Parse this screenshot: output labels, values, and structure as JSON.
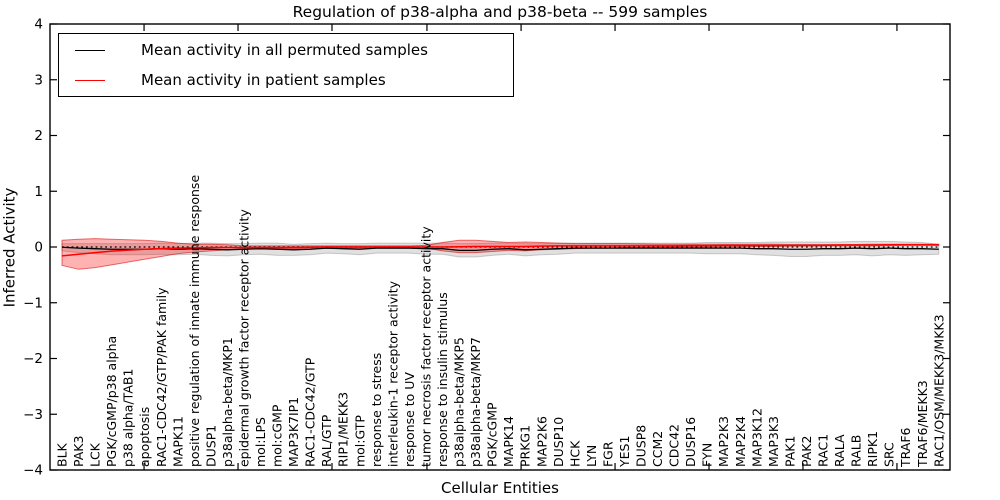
{
  "figure": {
    "title": "Regulation of p38-alpha and p38-beta -- 599 samples",
    "xlabel": "Cellular Entities",
    "ylabel": "Inferred Activity",
    "background": "#ffffff",
    "legend": {
      "position": "upper left",
      "items": [
        {
          "label": "Mean activity in all permuted samples",
          "color": "#000000"
        },
        {
          "label": "Mean activity in patient samples",
          "color": "#ff0000"
        }
      ]
    }
  },
  "chart_data": {
    "type": "line",
    "title": "Regulation of p38-alpha and p38-beta -- 599 samples",
    "xlabel": "Cellular Entities",
    "ylabel": "Inferred Activity",
    "ylim": [
      -4,
      4
    ],
    "yticks": [
      -4,
      -3,
      -2,
      -1,
      0,
      1,
      2,
      3,
      4
    ],
    "grid": false,
    "legend_position": "upper left",
    "xtick_positions_idx": [
      4.96,
      10.64,
      16.32,
      22.06,
      27.75,
      33.43,
      39.11,
      44.79,
      50.47
    ],
    "zero_line": {
      "style": "dotted",
      "color": "#000000",
      "y": 0
    },
    "categories": [
      "BLK",
      "PAK3",
      "LCK",
      "PGK/cGMP/p38 alpha",
      "p38 alpha/TAB1",
      "apoptosis",
      "RAC1-CDC42/GTP/PAK family",
      "MAPK11",
      "positive regulation of innate immune response",
      "DUSP1",
      "p38alpha-beta/MKP1",
      "epidermal growth factor receptor activity",
      "mol:LPS",
      "mol:cGMP",
      "MAP3K7IP1",
      "RAC1-CDC42/GTP",
      "RAL/GTP",
      "RIP1/MEKK3",
      "mol:GTP",
      "response to stress",
      "interleukin-1 receptor activity",
      "response to UV",
      "tumor necrosis factor receptor activity",
      "response to insulin stimulus",
      "p38alpha-beta/MKP5",
      "p38alpha-beta/MKP7",
      "PGK/cGMP",
      "MAPK14",
      "PRKG1",
      "MAP2K6",
      "DUSP10",
      "HCK",
      "LYN",
      "FGR",
      "YES1",
      "DUSP8",
      "CCM2",
      "CDC42",
      "DUSP16",
      "FYN",
      "MAP2K3",
      "MAP2K4",
      "MAP3K12",
      "MAP3K3",
      "PAK1",
      "PAK2",
      "RAC1",
      "RALA",
      "RALB",
      "RIPK1",
      "SRC",
      "TRAF6",
      "TRAF6/MEKK3",
      "RAC1/OSM/MEKK3/MKK3"
    ],
    "series": [
      {
        "name": "Mean activity in all permuted samples",
        "color": "#000000",
        "band_fill": "rgba(0,0,0,0.12)",
        "band_edge": "rgba(0,0,0,0.18)",
        "values": [
          -0.005,
          -0.02,
          -0.03,
          -0.04,
          -0.04,
          -0.04,
          -0.03,
          -0.04,
          -0.03,
          -0.04,
          -0.05,
          -0.04,
          -0.03,
          -0.04,
          -0.05,
          -0.04,
          -0.02,
          -0.03,
          -0.04,
          -0.02,
          -0.02,
          -0.02,
          -0.03,
          -0.03,
          -0.06,
          -0.06,
          -0.04,
          -0.03,
          -0.05,
          -0.04,
          -0.03,
          -0.02,
          -0.02,
          -0.02,
          -0.02,
          -0.02,
          -0.02,
          -0.02,
          -0.02,
          -0.02,
          -0.02,
          -0.02,
          -0.03,
          -0.03,
          -0.04,
          -0.04,
          -0.03,
          -0.03,
          -0.02,
          -0.03,
          -0.02,
          -0.03,
          -0.03,
          -0.04
        ],
        "band_upper": [
          0.06,
          0.06,
          0.06,
          0.06,
          0.06,
          0.06,
          0.07,
          0.06,
          0.07,
          0.07,
          0.06,
          0.06,
          0.07,
          0.07,
          0.05,
          0.06,
          0.07,
          0.06,
          0.06,
          0.07,
          0.07,
          0.07,
          0.07,
          0.07,
          0.06,
          0.06,
          0.07,
          0.07,
          0.06,
          0.06,
          0.07,
          0.07,
          0.07,
          0.07,
          0.07,
          0.07,
          0.07,
          0.07,
          0.07,
          0.08,
          0.08,
          0.08,
          0.08,
          0.09,
          0.09,
          0.09,
          0.09,
          0.09,
          0.1,
          0.1,
          0.1,
          0.09,
          0.08,
          0.05
        ],
        "band_lower": [
          -0.07,
          -0.1,
          -0.12,
          -0.14,
          -0.14,
          -0.14,
          -0.13,
          -0.14,
          -0.13,
          -0.15,
          -0.16,
          -0.14,
          -0.13,
          -0.15,
          -0.15,
          -0.14,
          -0.11,
          -0.12,
          -0.14,
          -0.11,
          -0.11,
          -0.11,
          -0.13,
          -0.13,
          -0.18,
          -0.18,
          -0.15,
          -0.13,
          -0.16,
          -0.14,
          -0.13,
          -0.11,
          -0.11,
          -0.11,
          -0.11,
          -0.11,
          -0.11,
          -0.11,
          -0.11,
          -0.12,
          -0.12,
          -0.12,
          -0.14,
          -0.15,
          -0.17,
          -0.17,
          -0.15,
          -0.15,
          -0.14,
          -0.16,
          -0.14,
          -0.15,
          -0.14,
          -0.13
        ]
      },
      {
        "name": "Mean activity in patient samples",
        "color": "#ff0000",
        "band_fill": "rgba(255,0,0,0.30)",
        "band_edge": "rgba(215,0,0,0.55)",
        "values": [
          -0.16,
          -0.13,
          -0.1,
          -0.075,
          -0.055,
          -0.04,
          -0.03,
          -0.02,
          -0.015,
          -0.01,
          -0.01,
          -0.01,
          -0.01,
          -0.01,
          -0.01,
          -0.005,
          0.0,
          0.0,
          0.0,
          0.0,
          0.0,
          0.0,
          0.0,
          0.0,
          0.005,
          0.01,
          0.01,
          0.01,
          0.01,
          0.015,
          0.02,
          0.02,
          0.02,
          0.02,
          0.02,
          0.02,
          0.02,
          0.02,
          0.025,
          0.025,
          0.03,
          0.03,
          0.03,
          0.03,
          0.03,
          0.03,
          0.03,
          0.035,
          0.035,
          0.035,
          0.04,
          0.04,
          0.04,
          0.04
        ],
        "band_upper": [
          0.12,
          0.14,
          0.15,
          0.14,
          0.13,
          0.12,
          0.1,
          0.07,
          0.05,
          0.05,
          0.04,
          0.02,
          0.02,
          0.02,
          0.02,
          0.02,
          0.02,
          0.02,
          0.02,
          0.02,
          0.02,
          0.02,
          0.03,
          0.08,
          0.12,
          0.12,
          0.1,
          0.08,
          0.09,
          0.08,
          0.07,
          0.06,
          0.06,
          0.06,
          0.06,
          0.055,
          0.05,
          0.05,
          0.05,
          0.05,
          0.05,
          0.05,
          0.05,
          0.05,
          0.045,
          0.045,
          0.045,
          0.045,
          0.045,
          0.05,
          0.05,
          0.05,
          0.05,
          0.05
        ],
        "band_lower": [
          -0.33,
          -0.4,
          -0.37,
          -0.32,
          -0.27,
          -0.22,
          -0.17,
          -0.12,
          -0.09,
          -0.07,
          -0.05,
          -0.03,
          -0.03,
          -0.03,
          -0.03,
          -0.02,
          -0.02,
          -0.02,
          -0.02,
          -0.02,
          -0.02,
          -0.02,
          -0.02,
          -0.07,
          -0.1,
          -0.1,
          -0.08,
          -0.06,
          -0.07,
          -0.05,
          -0.04,
          -0.03,
          -0.02,
          -0.02,
          -0.01,
          -0.01,
          -0.005,
          0.0,
          0.0,
          0.0,
          0.005,
          0.01,
          0.01,
          0.01,
          0.015,
          0.015,
          0.02,
          0.02,
          0.02,
          0.02,
          0.025,
          0.03,
          0.03,
          0.03
        ]
      }
    ]
  }
}
